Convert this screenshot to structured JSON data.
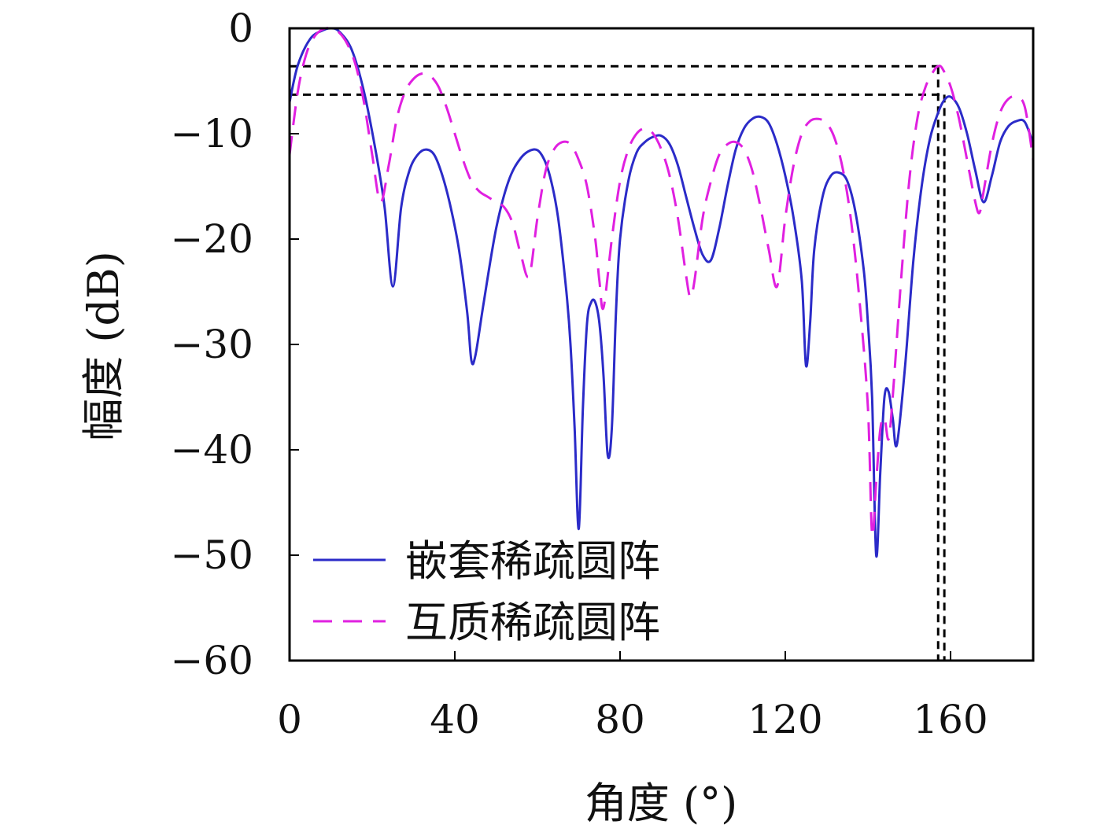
{
  "chart_data": {
    "type": "line",
    "xlabel": "角度 (°)",
    "ylabel": "幅度 (dB)",
    "xlim": [
      0,
      180
    ],
    "ylim": [
      -60,
      0
    ],
    "xticks": [
      "0",
      "40",
      "80",
      "120",
      "160"
    ],
    "yticks": [
      "0",
      "−10",
      "−20",
      "−30",
      "−40",
      "−50",
      "−60"
    ],
    "grid": false,
    "legend_position": "bottom-left",
    "series": [
      {
        "name": "嵌套稀疏圆阵",
        "style": "solid",
        "color": "#2b2bc8",
        "x": [
          0,
          2,
          5,
          8,
          10,
          12,
          15,
          18,
          21,
          23,
          25,
          27,
          29,
          31,
          33,
          35,
          37,
          39,
          41,
          43,
          44,
          45,
          47,
          50,
          53,
          56,
          59,
          61,
          63,
          65,
          67,
          68,
          69,
          70,
          71,
          72,
          73,
          74,
          75,
          76,
          77,
          78,
          79,
          80,
          82,
          84,
          86,
          88,
          90,
          92,
          94,
          96,
          98,
          100,
          102,
          104,
          106,
          108,
          110,
          112,
          114,
          116,
          118,
          120,
          122,
          124,
          125,
          126,
          127,
          129,
          131,
          133,
          135,
          137,
          139,
          140,
          141,
          142,
          143,
          144,
          145,
          146,
          147,
          149,
          151,
          153,
          155,
          157,
          158.5,
          160,
          162,
          164,
          166,
          168,
          170,
          172,
          174,
          176,
          178,
          180
        ],
        "y": [
          -7.0,
          -3.5,
          -1.0,
          -0.2,
          0.0,
          -0.3,
          -2.0,
          -6.0,
          -12.0,
          -17.0,
          -24.5,
          -17.0,
          -13.5,
          -12.0,
          -11.5,
          -12.0,
          -14.0,
          -17.0,
          -21.0,
          -27.0,
          -31.5,
          -31.0,
          -26.0,
          -19.0,
          -14.5,
          -12.3,
          -11.5,
          -12.0,
          -14.0,
          -18.0,
          -25.0,
          -30.0,
          -38.0,
          -47.5,
          -36.0,
          -28.0,
          -26.0,
          -26.0,
          -28.0,
          -33.0,
          -40.5,
          -38.0,
          -27.0,
          -20.0,
          -14.5,
          -11.8,
          -10.8,
          -10.3,
          -10.2,
          -11.0,
          -13.0,
          -16.0,
          -19.0,
          -21.5,
          -22.0,
          -19.0,
          -15.0,
          -11.5,
          -9.5,
          -8.6,
          -8.4,
          -9.0,
          -11.0,
          -14.0,
          -18.0,
          -24.0,
          -32.0,
          -28.0,
          -21.0,
          -16.0,
          -14.0,
          -13.7,
          -14.5,
          -17.5,
          -23.0,
          -28.0,
          -35.0,
          -50.0,
          -42.0,
          -35.0,
          -34.5,
          -37.0,
          -39.5,
          -32.0,
          -22.0,
          -15.0,
          -10.5,
          -8.0,
          -6.8,
          -6.5,
          -7.5,
          -10.0,
          -13.5,
          -16.5,
          -14.0,
          -10.8,
          -9.3,
          -8.8,
          -8.9,
          -11.0
        ]
      },
      {
        "name": "互质稀疏圆阵",
        "style": "dashed",
        "color": "#e020e0",
        "x": [
          0,
          2,
          4,
          6,
          8,
          10,
          12,
          14,
          16,
          18,
          20,
          22,
          24,
          26,
          28,
          30,
          32,
          34,
          36,
          38,
          40,
          42,
          44,
          46,
          48,
          50,
          52,
          54,
          56,
          58,
          60,
          62,
          64,
          66,
          68,
          70,
          72,
          74,
          75,
          76,
          78,
          80,
          82,
          84,
          86,
          88,
          90,
          92,
          94,
          96,
          97,
          98,
          100,
          102,
          104,
          106,
          108,
          110,
          112,
          114,
          116,
          118,
          120,
          122,
          124,
          126,
          128,
          130,
          132,
          134,
          136,
          138,
          140,
          141,
          142,
          143,
          144,
          145,
          146,
          148,
          150,
          152,
          154,
          156,
          157,
          158,
          160,
          162,
          164,
          166,
          167,
          168,
          170,
          172,
          174,
          176,
          178,
          180
        ],
        "y": [
          -12.0,
          -6.0,
          -2.5,
          -0.8,
          -0.1,
          0.0,
          -0.4,
          -1.5,
          -3.5,
          -7.0,
          -12.0,
          -16.5,
          -13.0,
          -8.5,
          -6.0,
          -4.8,
          -4.3,
          -4.5,
          -5.5,
          -7.5,
          -10.0,
          -12.5,
          -14.5,
          -15.5,
          -16.0,
          -16.5,
          -17.0,
          -18.5,
          -21.5,
          -23.5,
          -18.0,
          -13.5,
          -11.5,
          -10.8,
          -11.0,
          -12.5,
          -15.0,
          -20.0,
          -24.0,
          -26.5,
          -20.0,
          -14.5,
          -11.5,
          -10.0,
          -9.5,
          -10.0,
          -11.5,
          -14.0,
          -18.0,
          -23.5,
          -25.5,
          -24.0,
          -18.0,
          -14.5,
          -12.0,
          -11.0,
          -10.8,
          -11.5,
          -13.5,
          -17.0,
          -21.0,
          -24.5,
          -18.0,
          -13.0,
          -10.0,
          -8.8,
          -8.6,
          -9.0,
          -10.5,
          -13.5,
          -18.5,
          -26.0,
          -36.0,
          -48.0,
          -43.0,
          -38.0,
          -37.0,
          -39.0,
          -35.0,
          -24.0,
          -14.5,
          -8.5,
          -5.5,
          -4.0,
          -3.6,
          -3.8,
          -5.5,
          -8.5,
          -12.5,
          -16.5,
          -17.5,
          -15.5,
          -11.0,
          -8.0,
          -6.7,
          -6.5,
          -7.5,
          -12.5
        ]
      }
    ],
    "guides": [
      {
        "y": -3.6,
        "x_end": 157
      },
      {
        "y": -6.3,
        "x_end": 158.5
      }
    ]
  }
}
